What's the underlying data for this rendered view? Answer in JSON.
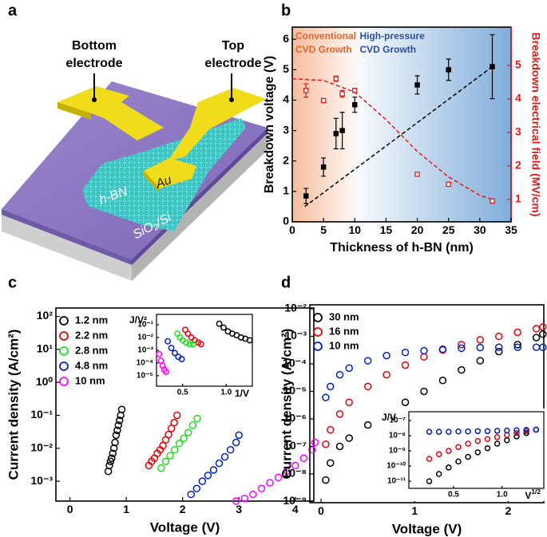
{
  "schematic": {
    "panel_label": "a",
    "bottom_electrode": [
      "Bottom",
      "electrode"
    ],
    "top_electrode": [
      "Top",
      "electrode"
    ],
    "au": "Au",
    "hbn": "h-BN",
    "substrate": "SiO₂/Si"
  },
  "chart_data": [
    {
      "type": "scatter",
      "panel_label": "b",
      "xlabel": "Thickness of h-BN (nm)",
      "ylabel": "Breakdown voltage (V)",
      "y2label": "Breakdown electrical field (MV/cm)",
      "y2color": "#e31a1c",
      "xlim": [
        0,
        35
      ],
      "xticks": [
        0,
        5,
        10,
        15,
        20,
        25,
        30,
        35
      ],
      "ylim": [
        0,
        6.4
      ],
      "yticks": [
        0,
        1,
        2,
        3,
        4,
        5,
        6
      ],
      "y2lim": [
        0.33,
        6.14
      ],
      "y2ticks": [
        1,
        2,
        3,
        4,
        5
      ],
      "shading": [
        {
          "xlim": [
            0,
            11
          ],
          "color": "#f5a67a",
          "fade": "right"
        },
        {
          "xlim": [
            9,
            35
          ],
          "color": "#6a9fd4",
          "fade": "left"
        }
      ],
      "annotations": [
        {
          "lines": [
            "Conventional",
            "CVD Growth"
          ],
          "color": "#e0672a"
        },
        {
          "lines": [
            "High-pressure",
            "CVD Growth"
          ],
          "color": "#2a4f9e"
        }
      ],
      "series": [
        {
          "color": "#000000",
          "marker": "filled-square",
          "x": [
            2.2,
            5,
            7,
            8,
            10,
            20,
            25,
            32
          ],
          "values": [
            0.85,
            1.8,
            2.9,
            3.0,
            3.85,
            4.5,
            5.0,
            5.1
          ],
          "errors": [
            0.25,
            0.3,
            0.5,
            0.6,
            0.25,
            0.3,
            0.35,
            1.05
          ]
        },
        {
          "color": "#e31a1c",
          "marker": "open-square",
          "axis": "y2",
          "x": [
            2.2,
            5,
            7,
            8,
            10,
            20,
            25,
            32
          ],
          "values": [
            4.25,
            3.95,
            4.6,
            4.15,
            4.25,
            1.75,
            1.45,
            0.95
          ],
          "errors": [
            0.2,
            0.05,
            0.08,
            0.1,
            0.06,
            0.03,
            0.04,
            0.04
          ]
        },
        {
          "color": "#000000",
          "line": "dashed",
          "x": [
            2,
            32
          ],
          "values": [
            0.5,
            5.1
          ]
        },
        {
          "color": "#e31a1c",
          "line": "dashed",
          "axis": "y2",
          "x": [
            0,
            5,
            10,
            15,
            20,
            25,
            30,
            32
          ],
          "values": [
            4.6,
            4.55,
            4.2,
            3.38,
            2.43,
            1.67,
            1.12,
            1.0
          ]
        }
      ]
    },
    {
      "type": "scatter",
      "panel_label": "c",
      "yscale": "log",
      "legend": "upper left",
      "xlabel": "Voltage (V)",
      "ylabel": "Current density (A/cm²)",
      "xlim": [
        -0.25,
        4.33
      ],
      "xticks": [
        0,
        1,
        2,
        3,
        4
      ],
      "ylim": [
        0.00025,
        180
      ],
      "yticks": [
        {
          "value": 100,
          "label": "10²"
        },
        {
          "value": 10,
          "label": "10¹"
        },
        {
          "value": 1,
          "label": "10⁰"
        },
        {
          "value": 0.1,
          "label": "10⁻¹"
        },
        {
          "value": 0.01,
          "label": "10⁻²"
        },
        {
          "value": 0.001,
          "label": "10⁻³"
        }
      ],
      "series": [
        {
          "name": "1.2 nm",
          "color": "#000000",
          "marker": "open-circle",
          "x": [
            0.68,
            0.7,
            0.72,
            0.74,
            0.76,
            0.78,
            0.8,
            0.82,
            0.84,
            0.86,
            0.88,
            0.9,
            0.92
          ],
          "values": [
            0.002,
            0.003,
            0.004,
            0.005,
            0.007,
            0.01,
            0.015,
            0.025,
            0.035,
            0.05,
            0.07,
            0.1,
            0.15
          ]
        },
        {
          "name": "2.2 nm",
          "color": "#e8000b",
          "marker": "open-circle",
          "x": [
            1.4,
            1.45,
            1.5,
            1.55,
            1.6,
            1.65,
            1.7,
            1.75,
            1.8,
            1.85,
            1.9
          ],
          "values": [
            0.003,
            0.004,
            0.005,
            0.007,
            0.009,
            0.012,
            0.018,
            0.026,
            0.04,
            0.06,
            0.1
          ]
        },
        {
          "name": "2.8 nm",
          "color": "#22dd22",
          "marker": "open-circle",
          "x": [
            1.62,
            1.7,
            1.78,
            1.86,
            1.94,
            2.02,
            2.1,
            2.18,
            2.26
          ],
          "values": [
            0.0025,
            0.004,
            0.006,
            0.009,
            0.014,
            0.02,
            0.03,
            0.05,
            0.08
          ]
        },
        {
          "name": "4.8 nm",
          "color": "#0020c8",
          "marker": "open-circle",
          "x": [
            2.15,
            2.25,
            2.35,
            2.45,
            2.55,
            2.65,
            2.75,
            2.85,
            2.95,
            3.0
          ],
          "values": [
            0.0004,
            0.0006,
            0.001,
            0.0015,
            0.0022,
            0.0035,
            0.0055,
            0.009,
            0.015,
            0.025
          ]
        },
        {
          "name": "10 nm",
          "color": "#ff00ff",
          "marker": "open-circle",
          "x": [
            2.95,
            3.1,
            3.25,
            3.4,
            3.55,
            3.7,
            3.85,
            4.0,
            4.15,
            4.3,
            4.35
          ],
          "values": [
            0.00025,
            0.0003,
            0.0004,
            0.0006,
            0.0009,
            0.0013,
            0.002,
            0.003,
            0.005,
            0.009,
            0.015
          ]
        }
      ]
    },
    {
      "type": "scatter",
      "yscale": "log",
      "xlabel": "1/V",
      "ylabel": "J/V²",
      "xlim": [
        0.2,
        1.3
      ],
      "xticks": [
        0.5,
        {
          "value": 1,
          "label": "1.0"
        }
      ],
      "ylim": [
        1.5e-06,
        0.65
      ],
      "yticks": [
        {
          "value": 0.1,
          "label": "10⁻¹"
        },
        {
          "value": 0.01,
          "label": "10⁻²"
        },
        {
          "value": 0.001,
          "label": "10⁻³"
        },
        {
          "value": 0.0001,
          "label": "10⁻⁴"
        },
        {
          "value": 1e-05,
          "label": "10⁻⁵"
        }
      ],
      "series": [
        {
          "color": "#000000",
          "marker": "open-circle",
          "x": [
            0.92,
            0.97,
            1.02,
            1.07,
            1.12,
            1.17,
            1.22,
            1.27
          ],
          "values": [
            0.12,
            0.06,
            0.03,
            0.02,
            0.015,
            0.01,
            0.008,
            0.006
          ]
        },
        {
          "color": "#e8000b",
          "marker": "open-circle",
          "x": [
            0.53,
            0.56,
            0.6,
            0.64,
            0.68,
            0.71
          ],
          "values": [
            0.04,
            0.02,
            0.01,
            0.006,
            0.004,
            0.003
          ]
        },
        {
          "color": "#22dd22",
          "marker": "open-circle",
          "x": [
            0.44,
            0.47,
            0.5,
            0.54,
            0.58,
            0.62
          ],
          "values": [
            0.02,
            0.01,
            0.006,
            0.004,
            0.003,
            0.003
          ]
        },
        {
          "color": "#0020c8",
          "marker": "open-circle",
          "x": [
            0.33,
            0.37,
            0.41,
            0.45,
            0.49
          ],
          "values": [
            0.005,
            0.0015,
            0.0006,
            0.0003,
            0.0002
          ]
        },
        {
          "color": "#ff00ff",
          "marker": "open-circle",
          "x": [
            0.23,
            0.25,
            0.27,
            0.29,
            0.31
          ],
          "values": [
            0.0005,
            0.00015,
            6e-05,
            3e-05,
            2e-05
          ]
        }
      ]
    },
    {
      "type": "scatter",
      "panel_label": "d",
      "yscale": "log",
      "legend": "upper left",
      "xlabel": "Voltage (V)",
      "ylabel": "Current density (A/cm²)",
      "xlim": [
        -0.12,
        2.38
      ],
      "xticks": [
        0,
        1,
        2
      ],
      "ylim": [
        9e-10,
        0.014
      ],
      "yticks": [
        {
          "value": 0.01,
          "label": "10⁻²"
        },
        {
          "value": 0.001,
          "label": "10⁻³"
        },
        {
          "value": 0.0001,
          "label": "10⁻⁴"
        },
        {
          "value": 1e-05,
          "label": "10⁻⁵"
        },
        {
          "value": 1e-06,
          "label": "10⁻⁶"
        },
        {
          "value": 1e-07,
          "label": "10⁻⁷"
        },
        {
          "value": 1e-08,
          "label": "10⁻⁸"
        },
        {
          "value": 1e-09,
          "label": "10⁻⁹"
        }
      ],
      "series": [
        {
          "name": "30 nm",
          "color": "#000000",
          "marker": "open-circle",
          "x": [
            0.05,
            0.1,
            0.2,
            0.3,
            0.5,
            0.7,
            0.9,
            1.1,
            1.3,
            1.5,
            1.7,
            1.9,
            2.1,
            2.3,
            2.37
          ],
          "values": [
            6e-09,
            2.5e-08,
            1e-07,
            2e-07,
            6e-07,
            1.5e-06,
            4e-06,
            1e-05,
            2.5e-05,
            6e-05,
            0.00013,
            0.00028,
            0.0005,
            0.0009,
            0.0012
          ]
        },
        {
          "name": "16 nm",
          "color": "#e8000b",
          "marker": "open-circle",
          "x": [
            0.05,
            0.1,
            0.2,
            0.3,
            0.5,
            0.7,
            0.9,
            1.1,
            1.3,
            1.5,
            1.7,
            1.9,
            2.1,
            2.3,
            2.37
          ],
          "values": [
            1.2e-07,
            4e-07,
            1.5e-06,
            4e-06,
            1.5e-05,
            4e-05,
            9e-05,
            0.00018,
            0.00032,
            0.0005,
            0.00075,
            0.001,
            0.0014,
            0.0019,
            0.0022
          ]
        },
        {
          "name": "10 nm",
          "color": "#0020c8",
          "marker": "open-circle",
          "x": [
            0.05,
            0.1,
            0.2,
            0.3,
            0.5,
            0.7,
            0.9,
            1.1,
            1.3,
            1.5,
            1.7,
            1.9,
            2.1,
            2.3,
            2.37
          ],
          "values": [
            6e-06,
            1.5e-05,
            4e-05,
            7e-05,
            0.00013,
            0.0002,
            0.00026,
            0.0003,
            0.00034,
            0.00037,
            0.00039,
            0.0004,
            0.0004,
            0.0004,
            0.0004
          ]
        }
      ]
    },
    {
      "type": "scatter",
      "yscale": "log",
      "xlabel": {
        "text": "V",
        "sup": "1/2"
      },
      "ylabel": "J/V",
      "xlim": [
        0.04,
        1.43
      ],
      "xticks": [
        0.5,
        {
          "value": 1,
          "label": "1.0"
        }
      ],
      "ylim": [
        3.4e-12,
        3.8e-07
      ],
      "yticks": [
        {
          "value": 1e-07,
          "label": "10⁻⁷"
        },
        {
          "value": 1e-08,
          "label": "10⁻⁸"
        },
        {
          "value": 1e-09,
          "label": "10⁻⁹"
        },
        {
          "value": 1e-10,
          "label": "10⁻¹⁰"
        },
        {
          "value": 1e-11,
          "label": "10⁻¹¹"
        }
      ],
      "series": [
        {
          "color": "#000000",
          "marker": "open-circle",
          "x": [
            0.25,
            0.35,
            0.45,
            0.55,
            0.65,
            0.75,
            0.85,
            0.95,
            1.05,
            1.15,
            1.25,
            1.35
          ],
          "values": [
            1e-11,
            3e-11,
            8e-11,
            2e-10,
            4e-10,
            8e-10,
            1.5e-09,
            3e-09,
            5e-09,
            9e-09,
            1.5e-08,
            2.5e-08
          ]
        },
        {
          "color": "#e8000b",
          "marker": "open-circle",
          "x": [
            0.25,
            0.35,
            0.45,
            0.55,
            0.65,
            0.75,
            0.85,
            0.95,
            1.05,
            1.15,
            1.25,
            1.35
          ],
          "values": [
            3e-10,
            6e-10,
            1e-09,
            1.8e-09,
            3e-09,
            4.5e-09,
            6e-09,
            8e-09,
            1.1e-08,
            1.5e-08,
            2e-08,
            2.5e-08
          ]
        },
        {
          "color": "#0020c8",
          "marker": "open-circle",
          "x": [
            0.25,
            0.35,
            0.45,
            0.55,
            0.65,
            0.75,
            0.85,
            0.95,
            1.05,
            1.15,
            1.25,
            1.35
          ],
          "values": [
            1.8e-08,
            1.8e-08,
            1.8e-08,
            1.9e-08,
            1.9e-08,
            2e-08,
            2e-08,
            2.1e-08,
            2.2e-08,
            2.3e-08,
            2.4e-08,
            2.5e-08
          ]
        }
      ]
    }
  ]
}
